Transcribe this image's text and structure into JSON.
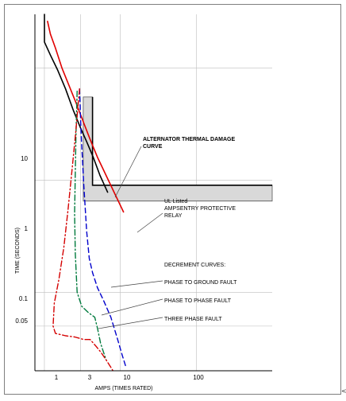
{
  "chart_data": {
    "type": "line",
    "xscale": "log",
    "yscale": "log",
    "xlim": [
      0.75,
      1000
    ],
    "ylim": [
      0.02,
      30
    ],
    "xlabel": "AMPS (TIMES RATED)",
    "ylabel": "TIME (SECONDS)",
    "x_ticks": [
      "1",
      "3",
      "10",
      "100"
    ],
    "y_ticks": [
      "10",
      "1",
      "0.1",
      "0.05"
    ],
    "grid": true,
    "series": [
      {
        "label": "ALTERNATOR THERMAL DAMAGE CURVE",
        "color": "#e00000",
        "style": "solid",
        "x": [
          1.1,
          1.2,
          1.4,
          1.7,
          2.1,
          2.6,
          3.2,
          4.0,
          5.0,
          6.5,
          8.5,
          11.0
        ],
        "y": [
          26,
          20,
          15,
          10,
          7,
          4.9,
          3.4,
          2.3,
          1.6,
          1.1,
          0.75,
          0.52
        ]
      },
      {
        "label": "",
        "color": "#000000",
        "style": "solid",
        "x": [
          1.0,
          1.0,
          1.2,
          1.5,
          1.9,
          2.4,
          3.0,
          3.6,
          4.4,
          5.4,
          6.8
        ],
        "y": [
          30,
          17,
          13,
          9.5,
          6.5,
          4.2,
          2.9,
          2.2,
          1.6,
          1.1,
          0.78
        ]
      },
      {
        "label": "PHASE TO GROUND FAULT",
        "color": "#0000cc",
        "style": "dashed",
        "x": [
          2.9,
          3.05,
          3.3,
          3.6,
          3.9,
          4.3,
          5.0,
          6.0,
          7.5,
          9.0,
          10.5,
          12.0
        ],
        "y": [
          6.5,
          2.5,
          0.9,
          0.35,
          0.2,
          0.15,
          0.11,
          0.085,
          0.06,
          0.04,
          0.028,
          0.021
        ]
      },
      {
        "label": "PHASE TO PHASE FAULT",
        "color": "#007a3d",
        "style": "dashdot",
        "x": [
          2.7,
          2.6,
          2.5,
          2.55,
          2.7,
          3.1,
          3.8,
          4.6,
          5.0,
          5.5,
          6.5
        ],
        "y": [
          6.2,
          2.5,
          0.5,
          0.22,
          0.1,
          0.075,
          0.066,
          0.06,
          0.048,
          0.035,
          0.025
        ]
      },
      {
        "label": "THREE PHASE FAULT",
        "color": "#d40000",
        "style": "dashdot",
        "x": [
          2.9,
          2.6,
          2.3,
          2.05,
          1.8,
          1.55,
          1.35,
          1.3,
          1.4,
          1.9,
          2.5,
          3.3,
          4.0,
          4.8,
          5.6,
          6.5,
          8.0
        ],
        "y": [
          6.5,
          2.8,
          1.2,
          0.55,
          0.25,
          0.13,
          0.08,
          0.05,
          0.043,
          0.041,
          0.04,
          0.038,
          0.038,
          0.033,
          0.029,
          0.025,
          0.02
        ]
      }
    ],
    "relay_band": {
      "label": "UL Listed AMPSENTRY PROTECTIVE RELAY",
      "fill": "#d9d9d9",
      "outer": [
        [
          3.25,
          5.5
        ],
        [
          4.3,
          5.5
        ],
        [
          4.3,
          0.9
        ],
        [
          1000,
          0.9
        ],
        [
          1000,
          0.65
        ],
        [
          3.25,
          0.65
        ]
      ],
      "inner": [
        [
          4.3,
          5.5
        ],
        [
          4.3,
          0.9
        ],
        [
          1000,
          0.9
        ]
      ]
    },
    "annotations": [
      "ALTERNATOR THERMAL DAMAGE",
      "CURVE",
      "UL Listed",
      "AMPSENTRY PROTECTIVE",
      "RELAY",
      "DECREMENT CURVES:",
      "PHASE TO GROUND FAULT",
      "PHASE TO PHASE FAULT",
      "THREE PHASE FAULT"
    ],
    "edge_glyph": "<"
  }
}
